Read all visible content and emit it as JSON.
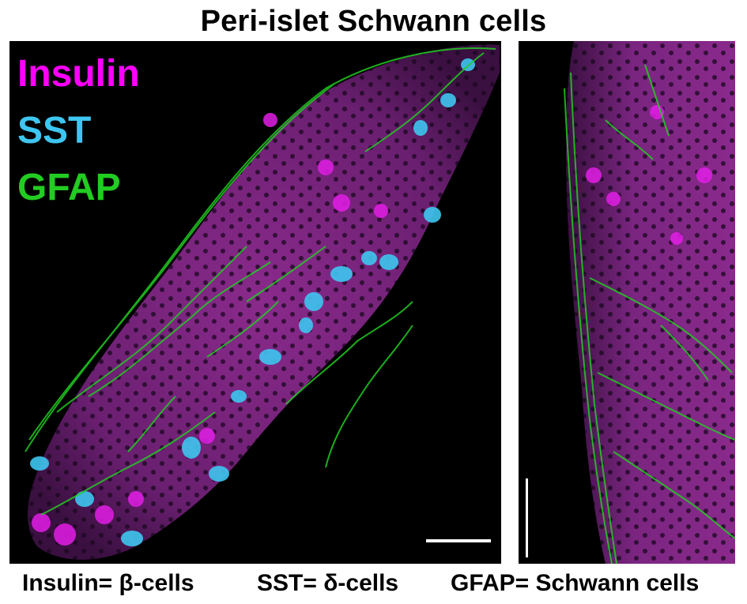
{
  "title": "Peri-islet Schwann cells",
  "legend": [
    {
      "label": "Insulin",
      "color": "#ff00ff"
    },
    {
      "label": "SST",
      "color": "#3ec6f0"
    },
    {
      "label": "GFAP",
      "color": "#22cc22"
    }
  ],
  "captions": [
    "Insulin= β-cells",
    "SST= δ-cells",
    "GFAP= Schwann cells"
  ]
}
